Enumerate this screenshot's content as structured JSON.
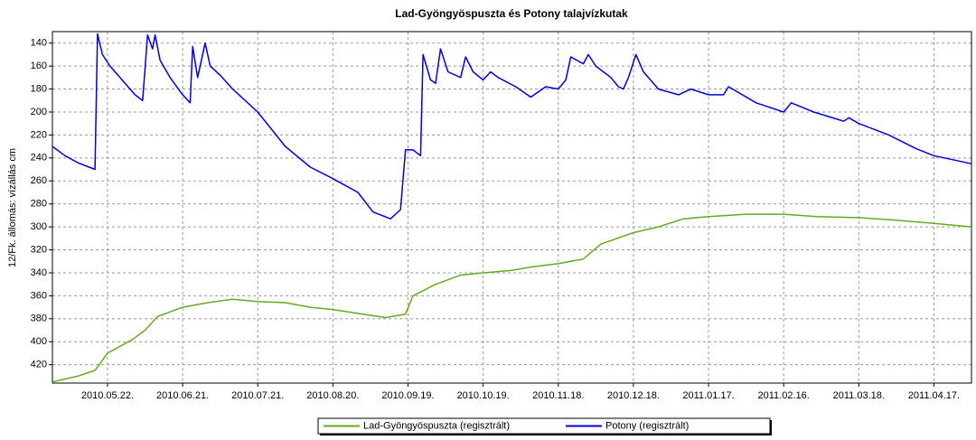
{
  "chart_data": {
    "type": "line",
    "title": "Lad-Gyöngyöspuszta és Potony talajvízkutak",
    "y_label": "12/Fk. állomás: vízállás cm",
    "xlim": [
      "2010-04-30",
      "2011-05-02"
    ],
    "xticks": [
      {
        "value": "2010-05-22",
        "label": "2010.05.22."
      },
      {
        "value": "2010-06-21",
        "label": "2010.06.21."
      },
      {
        "value": "2010-07-21",
        "label": "2010.07.21."
      },
      {
        "value": "2010-08-20",
        "label": "2010.08.20."
      },
      {
        "value": "2010-09-19",
        "label": "2010.09.19."
      },
      {
        "value": "2010-10-19",
        "label": "2010.10.19."
      },
      {
        "value": "2010-11-18",
        "label": "2010.11.18."
      },
      {
        "value": "2010-12-18",
        "label": "2010.12.18."
      },
      {
        "value": "2011-01-17",
        "label": "2011.01.17."
      },
      {
        "value": "2011-02-16",
        "label": "2011.02.16."
      },
      {
        "value": "2011-03-18",
        "label": "2011.03.18."
      },
      {
        "value": "2011-04-17",
        "label": "2011.04.17."
      }
    ],
    "ylim": [
      130,
      436
    ],
    "y_inverted": true,
    "yticks": [
      140,
      160,
      180,
      200,
      220,
      240,
      260,
      280,
      300,
      320,
      340,
      360,
      380,
      400,
      420
    ],
    "grid": true,
    "legend": "bottom",
    "series": [
      {
        "name": "Lad-Gyöngyöspuszta (regisztrált)",
        "color": "#66aa22",
        "x": [
          "2010-04-30",
          "2010-05-10",
          "2010-05-17",
          "2010-05-22",
          "2010-06-01",
          "2010-06-06",
          "2010-06-11",
          "2010-06-21",
          "2010-07-01",
          "2010-07-11",
          "2010-07-21",
          "2010-08-01",
          "2010-08-11",
          "2010-08-20",
          "2010-09-01",
          "2010-09-10",
          "2010-09-18",
          "2010-09-21",
          "2010-09-30",
          "2010-10-10",
          "2010-10-19",
          "2010-10-30",
          "2010-11-07",
          "2010-11-18",
          "2010-11-28",
          "2010-12-05",
          "2010-12-18",
          "2010-12-28",
          "2011-01-07",
          "2011-01-17",
          "2011-02-01",
          "2011-02-16",
          "2011-03-01",
          "2011-03-18",
          "2011-04-01",
          "2011-04-17",
          "2011-05-02"
        ],
        "values": [
          435,
          430,
          425,
          410,
          398,
          390,
          378,
          370,
          366,
          363,
          365,
          366,
          370,
          372,
          376,
          379,
          376,
          360,
          350,
          342,
          340,
          338,
          335,
          332,
          328,
          315,
          305,
          300,
          293,
          291,
          289,
          289,
          291,
          292,
          294,
          297,
          300
        ]
      },
      {
        "name": "Potony (regisztrált)",
        "color": "#0000dd",
        "x": [
          "2010-04-30",
          "2010-05-05",
          "2010-05-10",
          "2010-05-17",
          "2010-05-18",
          "2010-05-20",
          "2010-05-23",
          "2010-05-27",
          "2010-06-02",
          "2010-06-05",
          "2010-06-07",
          "2010-06-09",
          "2010-06-10",
          "2010-06-12",
          "2010-06-16",
          "2010-06-21",
          "2010-06-24",
          "2010-06-25",
          "2010-06-27",
          "2010-06-30",
          "2010-07-02",
          "2010-07-06",
          "2010-07-11",
          "2010-07-21",
          "2010-08-01",
          "2010-08-11",
          "2010-08-20",
          "2010-08-30",
          "2010-09-05",
          "2010-09-12",
          "2010-09-16",
          "2010-09-18",
          "2010-09-21",
          "2010-09-24",
          "2010-09-25",
          "2010-09-28",
          "2010-09-30",
          "2010-10-02",
          "2010-10-05",
          "2010-10-10",
          "2010-10-12",
          "2010-10-15",
          "2010-10-19",
          "2010-10-22",
          "2010-10-25",
          "2010-11-01",
          "2010-11-07",
          "2010-11-13",
          "2010-11-18",
          "2010-11-21",
          "2010-11-23",
          "2010-11-28",
          "2010-11-30",
          "2010-12-03",
          "2010-12-09",
          "2010-12-12",
          "2010-12-14",
          "2010-12-16",
          "2010-12-19",
          "2010-12-22",
          "2010-12-28",
          "2011-01-05",
          "2011-01-10",
          "2011-01-17",
          "2011-01-23",
          "2011-01-25",
          "2011-02-05",
          "2011-02-16",
          "2011-02-19",
          "2011-02-28",
          "2011-03-09",
          "2011-03-12",
          "2011-03-14",
          "2011-03-18",
          "2011-03-30",
          "2011-04-10",
          "2011-04-17",
          "2011-05-02"
        ],
        "values": [
          230,
          238,
          244,
          250,
          132,
          150,
          160,
          170,
          185,
          190,
          133,
          145,
          133,
          155,
          170,
          185,
          192,
          143,
          170,
          140,
          160,
          168,
          180,
          200,
          230,
          248,
          258,
          270,
          287,
          293,
          285,
          233,
          233,
          238,
          150,
          172,
          175,
          145,
          165,
          170,
          152,
          165,
          172,
          165,
          170,
          178,
          187,
          178,
          180,
          172,
          152,
          158,
          150,
          160,
          170,
          178,
          180,
          170,
          150,
          165,
          180,
          185,
          180,
          185,
          185,
          178,
          192,
          200,
          192,
          200,
          206,
          208,
          205,
          210,
          220,
          232,
          238,
          245
        ]
      }
    ]
  }
}
